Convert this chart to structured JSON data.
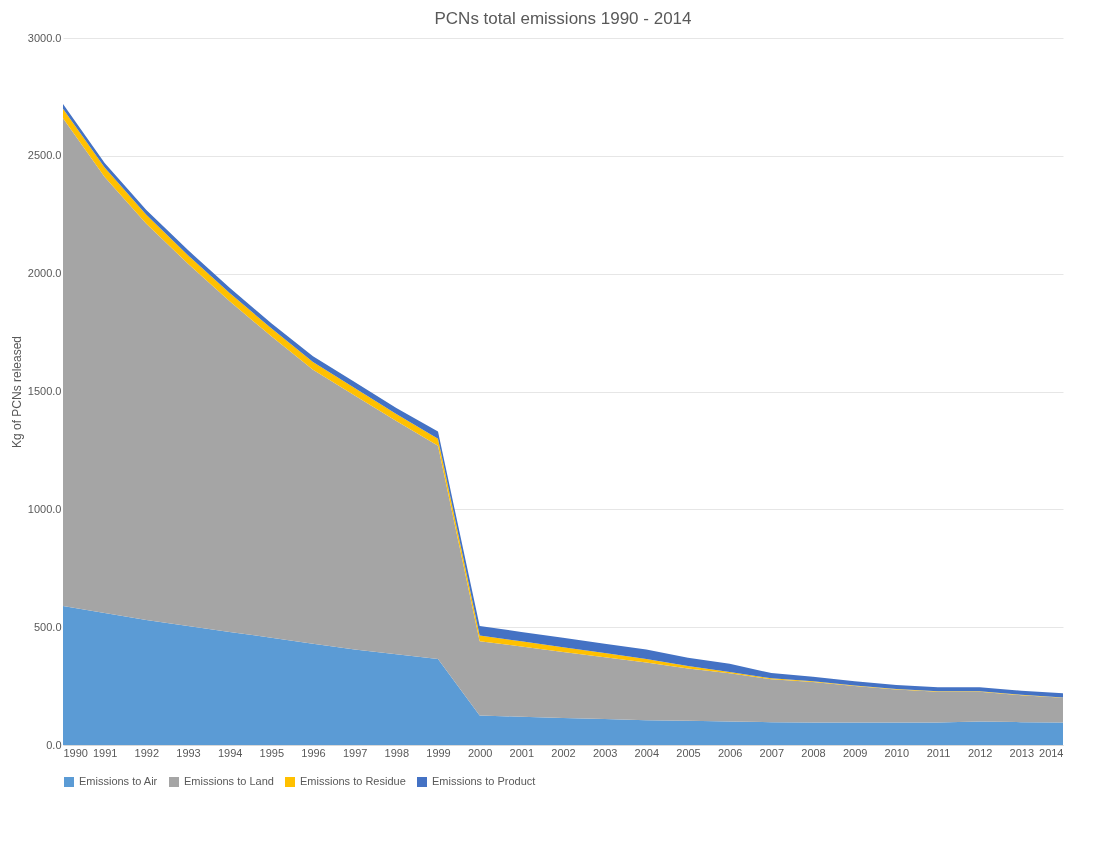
{
  "chart_data": {
    "type": "area",
    "title": "PCNs total emissions 1990 - 2014",
    "ylabel": "Kg of PCNs released",
    "categories": [
      "1990",
      "1991",
      "1992",
      "1993",
      "1994",
      "1995",
      "1996",
      "1997",
      "1998",
      "1999",
      "2000",
      "2001",
      "2002",
      "2003",
      "2004",
      "2005",
      "2006",
      "2007",
      "2008",
      "2009",
      "2010",
      "2011",
      "2012",
      "2013",
      "2014"
    ],
    "stacked": true,
    "series": [
      {
        "name": "Emissions to Air",
        "color": "#5b9bd5",
        "values": [
          590,
          560,
          530,
          505,
          480,
          455,
          430,
          405,
          385,
          365,
          125,
          120,
          115,
          110,
          105,
          103,
          100,
          97,
          95,
          95,
          95,
          95,
          100,
          97,
          95
        ]
      },
      {
        "name": "Emissions to Land",
        "color": "#a5a5a5",
        "values": [
          2070,
          1850,
          1682,
          1537,
          1403,
          1279,
          1162,
          1078,
          990,
          905,
          315,
          298,
          280,
          262,
          245,
          222,
          204,
          182,
          172,
          155,
          141,
          131,
          126,
          114,
          105
        ]
      },
      {
        "name": "Emissions to Residue",
        "color": "#ffc000",
        "values": [
          40,
          40,
          38,
          36,
          35,
          34,
          33,
          32,
          30,
          30,
          25,
          22,
          20,
          18,
          15,
          10,
          6,
          4,
          3,
          2,
          2,
          2,
          2,
          2,
          2
        ]
      },
      {
        "name": "Emissions to Product",
        "color": "#4472c4",
        "values": [
          20,
          20,
          20,
          22,
          22,
          22,
          25,
          25,
          25,
          30,
          40,
          40,
          40,
          40,
          40,
          35,
          35,
          22,
          20,
          18,
          17,
          17,
          17,
          17,
          18
        ]
      }
    ],
    "ylim": [
      0,
      3000
    ],
    "yticks": [
      {
        "value": 0,
        "label": "0.0"
      },
      {
        "value": 500,
        "label": "500.0"
      },
      {
        "value": 1000,
        "label": "1000.0"
      },
      {
        "value": 1500,
        "label": "1500.0"
      },
      {
        "value": 2000,
        "label": "2000.0"
      },
      {
        "value": 2500,
        "label": "2500.0"
      },
      {
        "value": 3000,
        "label": "3000.0"
      }
    ],
    "grid": "y",
    "legend": "bottom"
  }
}
